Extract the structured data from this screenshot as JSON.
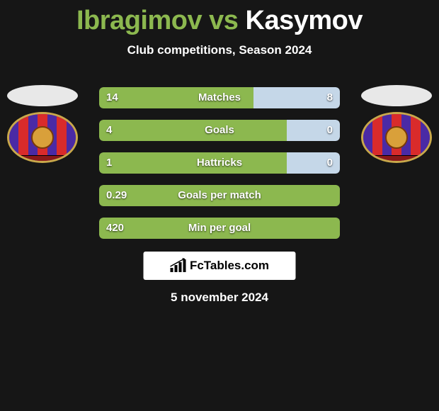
{
  "title": {
    "player1": "Ibragimov",
    "vs": "vs",
    "player2": "Kasymov",
    "player1_color": "#8cb84f",
    "player2_color": "#ffffff"
  },
  "subtitle": "Club competitions, Season 2024",
  "colors": {
    "left_bar": "#8cb84f",
    "right_bar": "#c5d7e8",
    "background": "#161616"
  },
  "avatars": {
    "head_color": "#e8e8e8",
    "badge_border": "#c9a84a",
    "stripe_a": "#4a2aa5",
    "stripe_b": "#d92b2b"
  },
  "stats": [
    {
      "label": "Matches",
      "left_val": "14",
      "right_val": "8",
      "left_pct": 64,
      "right_pct": 36
    },
    {
      "label": "Goals",
      "left_val": "4",
      "right_val": "0",
      "left_pct": 78,
      "right_pct": 22
    },
    {
      "label": "Hattricks",
      "left_val": "1",
      "right_val": "0",
      "left_pct": 78,
      "right_pct": 22
    },
    {
      "label": "Goals per match",
      "left_val": "0.29",
      "right_val": "",
      "left_pct": 100,
      "right_pct": 0
    },
    {
      "label": "Min per goal",
      "left_val": "420",
      "right_val": "",
      "left_pct": 100,
      "right_pct": 0
    }
  ],
  "site_logo": "FcTables.com",
  "date": "5 november 2024"
}
